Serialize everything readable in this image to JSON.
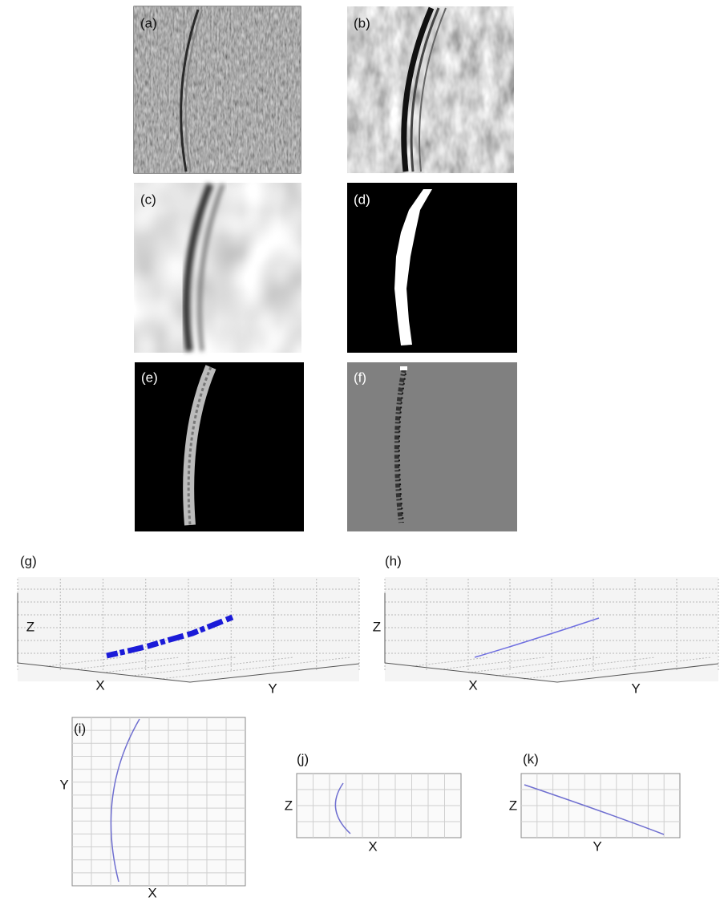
{
  "panels": [
    {
      "label": "(a)"
    },
    {
      "label": "(b)"
    },
    {
      "label": "(c)"
    },
    {
      "label": "(d)"
    },
    {
      "label": "(e)"
    },
    {
      "label": "(f)"
    },
    {
      "label": "(g)",
      "x_axis": "X",
      "y_axis": "Y",
      "z_axis": "Z"
    },
    {
      "label": "(h)",
      "x_axis": "X",
      "y_axis": "Y",
      "z_axis": "Z"
    },
    {
      "label": "(i)",
      "x_axis": "X",
      "y_axis": "Y"
    },
    {
      "label": "(j)",
      "x_axis": "X",
      "z_axis": "Z"
    },
    {
      "label": "(k)",
      "y_axis": "Y",
      "z_axis": "Z"
    }
  ]
}
